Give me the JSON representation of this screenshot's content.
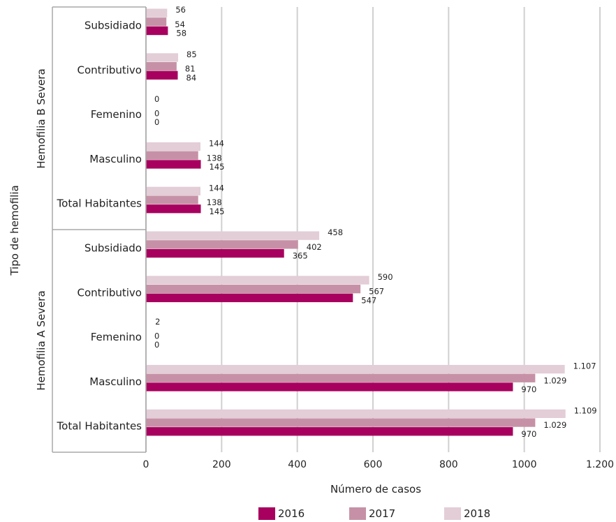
{
  "chart_data": {
    "type": "bar",
    "orientation": "horizontal",
    "xlabel": "Número de casos",
    "ylabel": "Tipo de hemofilia",
    "xlim": [
      0,
      1200
    ],
    "xticks": [
      0,
      200,
      400,
      600,
      800,
      1000,
      1200
    ],
    "xtick_labels": [
      "0",
      "200",
      "400",
      "600",
      "800",
      "1000",
      "1.200"
    ],
    "grid": "vertical",
    "legend_position": "bottom",
    "groups": [
      {
        "name": "Hemofilia B Severa",
        "categories": [
          "Subsidiado",
          "Contributivo",
          "Femenino",
          "Masculino",
          "Total Habitantes"
        ]
      },
      {
        "name": "Hemofilia A Severa",
        "categories": [
          "Subsidiado",
          "Contributivo",
          "Femenino",
          "Masculino",
          "Total Habitantes"
        ]
      }
    ],
    "series": [
      {
        "name": "2016",
        "color": "#A8005E",
        "values": [
          58,
          84,
          0,
          145,
          145,
          365,
          547,
          0,
          970,
          970
        ],
        "labels": [
          "58",
          "84",
          "0",
          "145",
          "145",
          "365",
          "547",
          "0",
          "970",
          "970"
        ]
      },
      {
        "name": "2017",
        "color": "#C691A6",
        "values": [
          54,
          81,
          0,
          138,
          138,
          402,
          567,
          0,
          1029,
          1029
        ],
        "labels": [
          "54",
          "81",
          "0",
          "138",
          "138",
          "402",
          "567",
          "0",
          "1.029",
          "1.029"
        ]
      },
      {
        "name": "2018",
        "color": "#E3CDD7",
        "values": [
          56,
          85,
          0,
          144,
          144,
          458,
          590,
          2,
          1107,
          1109
        ],
        "labels": [
          "56",
          "85",
          "0",
          "144",
          "144",
          "458",
          "590",
          "2",
          "1.107",
          "1.109"
        ]
      }
    ]
  }
}
